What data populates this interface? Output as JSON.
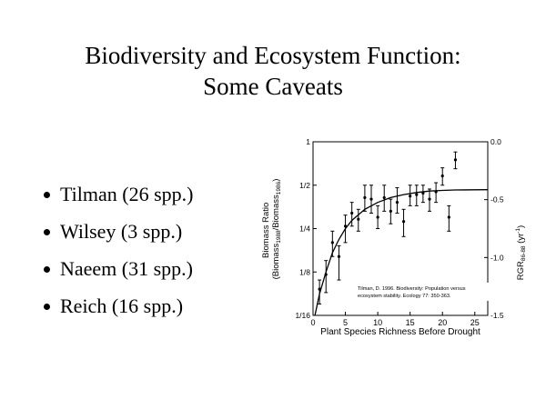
{
  "slide": {
    "title_line1": "Biodiversity and Ecosystem Function:",
    "title_line2": "Some Caveats",
    "bullets": [
      "Tilman (26 spp.)",
      "Wilsey (3 spp.)",
      "Naeem (31 spp.)",
      "Reich (16 spp.)"
    ]
  },
  "chart_data": {
    "type": "scatter",
    "xlabel": "Plant Species Richness Before Drought",
    "ylabel_left_line1": "Biomass Ratio",
    "ylabel_left_line2": "(Biomass",
    "ylabel_left_sub1": "1988",
    "ylabel_left_mid": "/Biomass",
    "ylabel_left_sub2": "1986",
    "ylabel_left_close": ")",
    "ylabel_right_main": "RGR",
    "ylabel_right_sub": "86-88",
    "ylabel_right_unit": " (yr",
    "ylabel_right_sup": "-1",
    "ylabel_right_close": ")",
    "xlim": [
      0,
      27
    ],
    "x_ticks": [
      0,
      5,
      10,
      15,
      20,
      25
    ],
    "x_tick_labels": [
      "0",
      "5",
      "10",
      "15",
      "20",
      "25"
    ],
    "y_left_scale": "log2",
    "y_left_ticks": [
      0.0625,
      0.125,
      0.25,
      0.5,
      1
    ],
    "y_left_tick_labels": [
      "1/16",
      "1/8",
      "1/4",
      "1/2",
      "1"
    ],
    "y_right_ticks": [
      0.0,
      -0.5,
      -1.0,
      -1.5
    ],
    "y_right_tick_labels": [
      "0.0",
      "-0.5",
      "-1.0",
      "-1.5"
    ],
    "y_right_lim": [
      -1.5,
      0.0
    ],
    "citation_line1": "Tilman, D. 1996. Biodiversity: Population versus",
    "citation_line2": "ecosystem stability. Ecology  77: 350-363.",
    "series": [
      {
        "points": [
          {
            "x": 1,
            "y": 0.095,
            "lo": 0.075,
            "hi": 0.11
          },
          {
            "x": 2,
            "y": 0.12,
            "lo": 0.09,
            "hi": 0.15
          },
          {
            "x": 3,
            "y": 0.2,
            "lo": 0.16,
            "hi": 0.24
          },
          {
            "x": 4,
            "y": 0.16,
            "lo": 0.11,
            "hi": 0.19
          },
          {
            "x": 5,
            "y": 0.26,
            "lo": 0.2,
            "hi": 0.31
          },
          {
            "x": 6,
            "y": 0.32,
            "lo": 0.26,
            "hi": 0.38
          },
          {
            "x": 7,
            "y": 0.29,
            "lo": 0.24,
            "hi": 0.34
          },
          {
            "x": 8,
            "y": 0.41,
            "lo": 0.33,
            "hi": 0.5
          },
          {
            "x": 9,
            "y": 0.4,
            "lo": 0.32,
            "hi": 0.5
          },
          {
            "x": 10,
            "y": 0.3,
            "lo": 0.25,
            "hi": 0.36
          },
          {
            "x": 11,
            "y": 0.41,
            "lo": 0.33,
            "hi": 0.5
          },
          {
            "x": 12,
            "y": 0.33,
            "lo": 0.27,
            "hi": 0.4
          },
          {
            "x": 13,
            "y": 0.38,
            "lo": 0.32,
            "hi": 0.48
          },
          {
            "x": 14,
            "y": 0.28,
            "lo": 0.22,
            "hi": 0.34
          },
          {
            "x": 15,
            "y": 0.42,
            "lo": 0.36,
            "hi": 0.5
          },
          {
            "x": 16,
            "y": 0.43,
            "lo": 0.36,
            "hi": 0.5
          },
          {
            "x": 17,
            "y": 0.44,
            "lo": 0.38,
            "hi": 0.5
          },
          {
            "x": 18,
            "y": 0.4,
            "lo": 0.33,
            "hi": 0.47
          },
          {
            "x": 19,
            "y": 0.45,
            "lo": 0.38,
            "hi": 0.52
          },
          {
            "x": 20,
            "y": 0.58,
            "lo": 0.5,
            "hi": 0.66
          },
          {
            "x": 21,
            "y": 0.3,
            "lo": 0.24,
            "hi": 0.36
          },
          {
            "x": 22,
            "y": 0.75,
            "lo": 0.65,
            "hi": 0.85
          }
        ],
        "fit_curve": [
          {
            "x": 0.3,
            "y": 0.0625
          },
          {
            "x": 1,
            "y": 0.088
          },
          {
            "x": 2,
            "y": 0.125
          },
          {
            "x": 3,
            "y": 0.17
          },
          {
            "x": 4,
            "y": 0.21
          },
          {
            "x": 5,
            "y": 0.25
          },
          {
            "x": 6,
            "y": 0.285
          },
          {
            "x": 8,
            "y": 0.34
          },
          {
            "x": 10,
            "y": 0.38
          },
          {
            "x": 12,
            "y": 0.41
          },
          {
            "x": 14,
            "y": 0.43
          },
          {
            "x": 16,
            "y": 0.445
          },
          {
            "x": 18,
            "y": 0.455
          },
          {
            "x": 20,
            "y": 0.46
          },
          {
            "x": 22,
            "y": 0.463
          },
          {
            "x": 27,
            "y": 0.465
          }
        ]
      }
    ]
  }
}
